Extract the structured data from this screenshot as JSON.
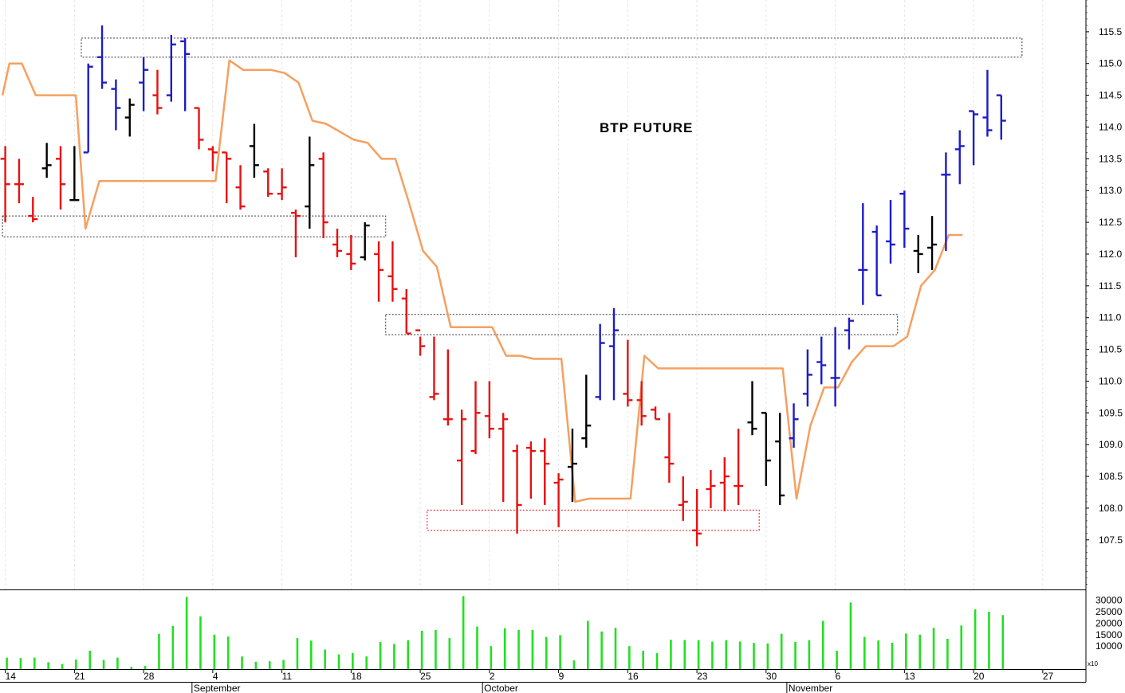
{
  "chart_data": {
    "type": "ohlc_bar_with_volume",
    "title": "BTP FUTURE",
    "colors": {
      "up_trend": "#1c1cc8",
      "down_trend": "#e81010",
      "neutral": "#000000",
      "trail_line": "#f5a060",
      "volume": "#22e022",
      "zone_box": "#333333",
      "support_box": "#e81010"
    },
    "x_axis": {
      "tick_labels": [
        "14",
        "21",
        "28",
        "4",
        "11",
        "18",
        "25",
        "2",
        "9",
        "16",
        "23",
        "30",
        "6",
        "13",
        "20",
        "27"
      ],
      "tick_bars": [
        0,
        5,
        10,
        15,
        20,
        25,
        30,
        35,
        40,
        45,
        50,
        55,
        60,
        65,
        70,
        75
      ],
      "month_labels": [
        {
          "label": "September",
          "bar": 13.5
        },
        {
          "label": "October",
          "bar": 34.5
        },
        {
          "label": "November",
          "bar": 56.5
        }
      ],
      "bar_range": [
        -0.2,
        78
      ]
    },
    "price_axis": {
      "ylim": [
        106.72,
        116.0
      ],
      "ticks": [
        "107.5",
        "108.0",
        "108.5",
        "109.0",
        "109.5",
        "110.0",
        "110.5",
        "111.0",
        "111.5",
        "112.0",
        "112.5",
        "113.0",
        "113.5",
        "114.0",
        "114.5",
        "115.0",
        "115.5"
      ]
    },
    "volume_axis": {
      "ylim": [
        0,
        34000
      ],
      "ticks": [
        "10000",
        "15000",
        "20000",
        "25000",
        "30000"
      ],
      "unit_label": "x10"
    },
    "bars": [
      {
        "t": 0,
        "o": 113.5,
        "h": 113.7,
        "l": 112.5,
        "c": 113.1,
        "col": "down_trend",
        "v": 5000
      },
      {
        "t": 1,
        "o": 113.1,
        "h": 113.5,
        "l": 112.8,
        "c": 113.1,
        "col": "down_trend",
        "v": 4800
      },
      {
        "t": 2,
        "o": 112.6,
        "h": 112.9,
        "l": 112.5,
        "c": 112.55,
        "col": "down_trend",
        "v": 5000
      },
      {
        "t": 3,
        "o": 113.35,
        "h": 113.75,
        "l": 113.2,
        "c": 113.4,
        "col": "neutral",
        "v": 3000
      },
      {
        "t": 4,
        "o": 113.5,
        "h": 113.7,
        "l": 112.7,
        "c": 113.1,
        "col": "down_trend",
        "v": 2200
      },
      {
        "t": 5,
        "o": 112.85,
        "h": 113.7,
        "l": 112.85,
        "c": 112.85,
        "col": "neutral",
        "v": 4200
      },
      {
        "t": 6,
        "o": 113.6,
        "h": 115.0,
        "l": 113.6,
        "c": 114.95,
        "col": "up_trend",
        "v": 8000
      },
      {
        "t": 7,
        "o": 115.1,
        "h": 115.6,
        "l": 114.6,
        "c": 114.7,
        "col": "up_trend",
        "v": 4000
      },
      {
        "t": 8,
        "o": 114.6,
        "h": 114.75,
        "l": 113.95,
        "c": 114.3,
        "col": "up_trend",
        "v": 5000
      },
      {
        "t": 9,
        "o": 114.15,
        "h": 114.45,
        "l": 113.85,
        "c": 114.35,
        "col": "neutral",
        "v": 1000
      },
      {
        "t": 10,
        "o": 114.7,
        "h": 115.1,
        "l": 114.25,
        "c": 114.9,
        "col": "up_trend",
        "v": 1400
      },
      {
        "t": 11,
        "o": 114.5,
        "h": 114.9,
        "l": 114.2,
        "c": 114.3,
        "col": "down_trend",
        "v": 15400
      },
      {
        "t": 12,
        "o": 114.5,
        "h": 115.45,
        "l": 114.4,
        "c": 115.3,
        "col": "up_trend",
        "v": 18800
      },
      {
        "t": 13,
        "o": 115.35,
        "h": 115.4,
        "l": 114.25,
        "c": 115.15,
        "col": "up_trend",
        "v": 31500
      },
      {
        "t": 14,
        "o": 114.3,
        "h": 114.3,
        "l": 113.65,
        "c": 113.8,
        "col": "down_trend",
        "v": 23000
      },
      {
        "t": 15,
        "o": 113.65,
        "h": 113.7,
        "l": 113.3,
        "c": 113.6,
        "col": "down_trend",
        "v": 15000
      },
      {
        "t": 16,
        "o": 113.6,
        "h": 113.6,
        "l": 112.8,
        "c": 113.5,
        "col": "down_trend",
        "v": 14200
      },
      {
        "t": 17,
        "o": 113.05,
        "h": 113.4,
        "l": 112.7,
        "c": 112.75,
        "col": "down_trend",
        "v": 5500
      },
      {
        "t": 18,
        "o": 113.7,
        "h": 114.05,
        "l": 113.2,
        "c": 113.4,
        "col": "neutral",
        "v": 3200
      },
      {
        "t": 19,
        "o": 113.3,
        "h": 113.35,
        "l": 112.9,
        "c": 112.95,
        "col": "down_trend",
        "v": 3400
      },
      {
        "t": 20,
        "o": 112.95,
        "h": 113.35,
        "l": 112.85,
        "c": 113.05,
        "col": "down_trend",
        "v": 4000
      },
      {
        "t": 21,
        "o": 112.65,
        "h": 112.7,
        "l": 111.95,
        "c": 112.6,
        "col": "down_trend",
        "v": 13500
      },
      {
        "t": 22,
        "o": 112.75,
        "h": 113.85,
        "l": 112.4,
        "c": 113.4,
        "col": "neutral",
        "v": 12400
      },
      {
        "t": 23,
        "o": 113.5,
        "h": 113.6,
        "l": 112.25,
        "c": 112.5,
        "col": "down_trend",
        "v": 8500
      },
      {
        "t": 24,
        "o": 112.15,
        "h": 112.4,
        "l": 111.95,
        "c": 112.05,
        "col": "down_trend",
        "v": 6400
      },
      {
        "t": 25,
        "o": 112.0,
        "h": 112.3,
        "l": 111.75,
        "c": 111.85,
        "col": "down_trend",
        "v": 7000
      },
      {
        "t": 26,
        "o": 111.95,
        "h": 112.5,
        "l": 111.9,
        "c": 112.45,
        "col": "neutral",
        "v": 5500
      },
      {
        "t": 27,
        "o": 112.0,
        "h": 112.2,
        "l": 111.25,
        "c": 111.75,
        "col": "down_trend",
        "v": 11800
      },
      {
        "t": 28,
        "o": 111.65,
        "h": 112.2,
        "l": 111.25,
        "c": 111.45,
        "col": "down_trend",
        "v": 11000
      },
      {
        "t": 29,
        "o": 111.3,
        "h": 111.45,
        "l": 110.75,
        "c": 110.75,
        "col": "down_trend",
        "v": 12600
      },
      {
        "t": 30,
        "o": 110.8,
        "h": 110.7,
        "l": 110.4,
        "c": 110.55,
        "col": "down_trend",
        "v": 16700
      },
      {
        "t": 31,
        "o": 109.75,
        "h": 110.7,
        "l": 109.7,
        "c": 109.8,
        "col": "down_trend",
        "v": 17000
      },
      {
        "t": 32,
        "o": 109.4,
        "h": 110.5,
        "l": 109.3,
        "c": 109.4,
        "col": "down_trend",
        "v": 13500
      },
      {
        "t": 33,
        "o": 108.75,
        "h": 109.55,
        "l": 108.05,
        "c": 109.4,
        "col": "down_trend",
        "v": 31800
      },
      {
        "t": 34,
        "o": 108.9,
        "h": 110.0,
        "l": 108.85,
        "c": 109.5,
        "col": "down_trend",
        "v": 18500
      },
      {
        "t": 35,
        "o": 109.45,
        "h": 110.0,
        "l": 109.1,
        "c": 109.25,
        "col": "down_trend",
        "v": 10000
      },
      {
        "t": 36,
        "o": 109.25,
        "h": 109.5,
        "l": 108.1,
        "c": 109.4,
        "col": "down_trend",
        "v": 17800
      },
      {
        "t": 37,
        "o": 108.9,
        "h": 109.0,
        "l": 107.6,
        "c": 108.05,
        "col": "down_trend",
        "v": 17000
      },
      {
        "t": 38,
        "o": 108.95,
        "h": 109.05,
        "l": 108.15,
        "c": 108.9,
        "col": "down_trend",
        "v": 17000
      },
      {
        "t": 39,
        "o": 108.9,
        "h": 109.1,
        "l": 108.05,
        "c": 108.7,
        "col": "down_trend",
        "v": 14000
      },
      {
        "t": 40,
        "o": 108.4,
        "h": 108.55,
        "l": 107.7,
        "c": 108.45,
        "col": "down_trend",
        "v": 14800
      },
      {
        "t": 41,
        "o": 108.65,
        "h": 109.25,
        "l": 108.1,
        "c": 108.7,
        "col": "neutral",
        "v": 3800
      },
      {
        "t": 42,
        "o": 109.1,
        "h": 110.1,
        "l": 108.95,
        "c": 109.3,
        "col": "neutral",
        "v": 21000
      },
      {
        "t": 43,
        "o": 109.75,
        "h": 110.9,
        "l": 109.7,
        "c": 110.6,
        "col": "up_trend",
        "v": 16400
      },
      {
        "t": 44,
        "o": 110.55,
        "h": 111.15,
        "l": 109.7,
        "c": 110.8,
        "col": "up_trend",
        "v": 18000
      },
      {
        "t": 45,
        "o": 109.8,
        "h": 110.65,
        "l": 109.6,
        "c": 109.7,
        "col": "down_trend",
        "v": 10000
      },
      {
        "t": 46,
        "o": 109.7,
        "h": 110.0,
        "l": 109.3,
        "c": 109.45,
        "col": "down_trend",
        "v": 8000
      },
      {
        "t": 47,
        "o": 109.55,
        "h": 109.6,
        "l": 109.4,
        "c": 109.4,
        "col": "down_trend",
        "v": 7000
      },
      {
        "t": 48,
        "o": 108.8,
        "h": 109.5,
        "l": 108.4,
        "c": 108.7,
        "col": "down_trend",
        "v": 12800
      },
      {
        "t": 49,
        "o": 108.05,
        "h": 108.5,
        "l": 107.8,
        "c": 108.1,
        "col": "down_trend",
        "v": 12700
      },
      {
        "t": 50,
        "o": 107.65,
        "h": 108.3,
        "l": 107.4,
        "c": 107.6,
        "col": "down_trend",
        "v": 12600
      },
      {
        "t": 51,
        "o": 108.3,
        "h": 108.6,
        "l": 108.0,
        "c": 108.35,
        "col": "down_trend",
        "v": 12000
      },
      {
        "t": 52,
        "o": 108.4,
        "h": 108.8,
        "l": 107.95,
        "c": 108.5,
        "col": "down_trend",
        "v": 12600
      },
      {
        "t": 53,
        "o": 108.35,
        "h": 109.25,
        "l": 108.05,
        "c": 108.35,
        "col": "down_trend",
        "v": 12000
      },
      {
        "t": 54,
        "o": 109.35,
        "h": 110.0,
        "l": 109.15,
        "c": 109.25,
        "col": "neutral",
        "v": 11400
      },
      {
        "t": 55,
        "o": 109.5,
        "h": 109.5,
        "l": 108.35,
        "c": 108.75,
        "col": "neutral",
        "v": 11200
      },
      {
        "t": 56,
        "o": 109.05,
        "h": 109.5,
        "l": 108.05,
        "c": 108.2,
        "col": "neutral",
        "v": 15400
      },
      {
        "t": 57,
        "o": 109.1,
        "h": 109.65,
        "l": 108.95,
        "c": 109.4,
        "col": "up_trend",
        "v": 11800
      },
      {
        "t": 58,
        "o": 109.8,
        "h": 110.5,
        "l": 109.6,
        "c": 110.1,
        "col": "up_trend",
        "v": 12600
      },
      {
        "t": 59,
        "o": 110.3,
        "h": 110.7,
        "l": 109.95,
        "c": 110.25,
        "col": "up_trend",
        "v": 21000
      },
      {
        "t": 60,
        "o": 110.05,
        "h": 110.85,
        "l": 109.6,
        "c": 110.05,
        "col": "up_trend",
        "v": 8000
      },
      {
        "t": 61,
        "o": 110.8,
        "h": 111.0,
        "l": 110.5,
        "c": 110.95,
        "col": "up_trend",
        "v": 29000
      },
      {
        "t": 62,
        "o": 111.75,
        "h": 112.8,
        "l": 111.2,
        "c": 111.75,
        "col": "up_trend",
        "v": 14000
      },
      {
        "t": 63,
        "o": 112.35,
        "h": 112.45,
        "l": 111.35,
        "c": 111.35,
        "col": "up_trend",
        "v": 12500
      },
      {
        "t": 64,
        "o": 112.2,
        "h": 112.85,
        "l": 111.85,
        "c": 112.15,
        "col": "up_trend",
        "v": 11500
      },
      {
        "t": 65,
        "o": 112.95,
        "h": 113.0,
        "l": 112.1,
        "c": 112.4,
        "col": "up_trend",
        "v": 15500
      },
      {
        "t": 66,
        "o": 112.05,
        "h": 112.3,
        "l": 111.7,
        "c": 112.0,
        "col": "neutral",
        "v": 15000
      },
      {
        "t": 67,
        "o": 112.1,
        "h": 112.6,
        "l": 111.75,
        "c": 112.15,
        "col": "neutral",
        "v": 18000
      },
      {
        "t": 68,
        "o": 113.25,
        "h": 113.6,
        "l": 112.05,
        "c": 113.25,
        "col": "up_trend",
        "v": 13200
      },
      {
        "t": 69,
        "o": 113.65,
        "h": 113.95,
        "l": 113.1,
        "c": 113.7,
        "col": "up_trend",
        "v": 19000
      },
      {
        "t": 70,
        "o": 114.25,
        "h": 114.25,
        "l": 113.4,
        "c": 114.2,
        "col": "up_trend",
        "v": 26000
      },
      {
        "t": 71,
        "o": 114.15,
        "h": 114.9,
        "l": 113.85,
        "c": 113.95,
        "col": "up_trend",
        "v": 25000
      },
      {
        "t": 72,
        "o": 114.5,
        "h": 114.5,
        "l": 113.8,
        "c": 114.1,
        "col": "up_trend",
        "v": 23500
      }
    ],
    "trail_line": [
      [
        -0.2,
        114.5
      ],
      [
        0.3,
        115.0
      ],
      [
        1.2,
        115.0
      ],
      [
        2.2,
        114.5
      ],
      [
        5.1,
        114.5
      ],
      [
        5.8,
        112.4
      ],
      [
        6.8,
        113.15
      ],
      [
        15.2,
        113.15
      ],
      [
        16.2,
        115.05
      ],
      [
        17.2,
        114.9
      ],
      [
        19.2,
        114.9
      ],
      [
        20.2,
        114.85
      ],
      [
        21.2,
        114.7
      ],
      [
        22.2,
        114.1
      ],
      [
        23.2,
        114.05
      ],
      [
        25.2,
        113.8
      ],
      [
        26.2,
        113.75
      ],
      [
        27.2,
        113.5
      ],
      [
        28.2,
        113.5
      ],
      [
        29.2,
        112.8
      ],
      [
        30.2,
        112.05
      ],
      [
        31.2,
        111.8
      ],
      [
        32.2,
        110.85
      ],
      [
        35.2,
        110.85
      ],
      [
        36.2,
        110.4
      ],
      [
        37.2,
        110.4
      ],
      [
        38.2,
        110.35
      ],
      [
        40.2,
        110.35
      ],
      [
        41.2,
        108.1
      ],
      [
        42.2,
        108.15
      ],
      [
        45.2,
        108.15
      ],
      [
        46.2,
        110.4
      ],
      [
        47.2,
        110.2
      ],
      [
        56.2,
        110.2
      ],
      [
        57.2,
        108.15
      ],
      [
        58.2,
        109.3
      ],
      [
        59.2,
        109.9
      ],
      [
        60.2,
        109.9
      ],
      [
        61.2,
        110.3
      ],
      [
        62.2,
        110.55
      ],
      [
        63.2,
        110.55
      ],
      [
        64.2,
        110.55
      ],
      [
        65.2,
        110.7
      ],
      [
        66.2,
        111.5
      ],
      [
        67.2,
        111.75
      ],
      [
        68.2,
        112.3
      ],
      [
        69.2,
        112.3
      ]
    ],
    "zones": [
      {
        "bar_from": 5.5,
        "bar_to": 73.5,
        "top": 115.4,
        "bottom": 115.1,
        "color": "zone_box"
      },
      {
        "bar_from": -0.2,
        "bar_to": 27.5,
        "top": 112.6,
        "bottom": 112.27,
        "color": "zone_box"
      },
      {
        "bar_from": 27.5,
        "bar_to": 64.5,
        "top": 111.05,
        "bottom": 110.73,
        "color": "zone_box"
      },
      {
        "bar_from": 30.5,
        "bar_to": 54.5,
        "top": 107.97,
        "bottom": 107.65,
        "color": "support_box"
      }
    ]
  }
}
